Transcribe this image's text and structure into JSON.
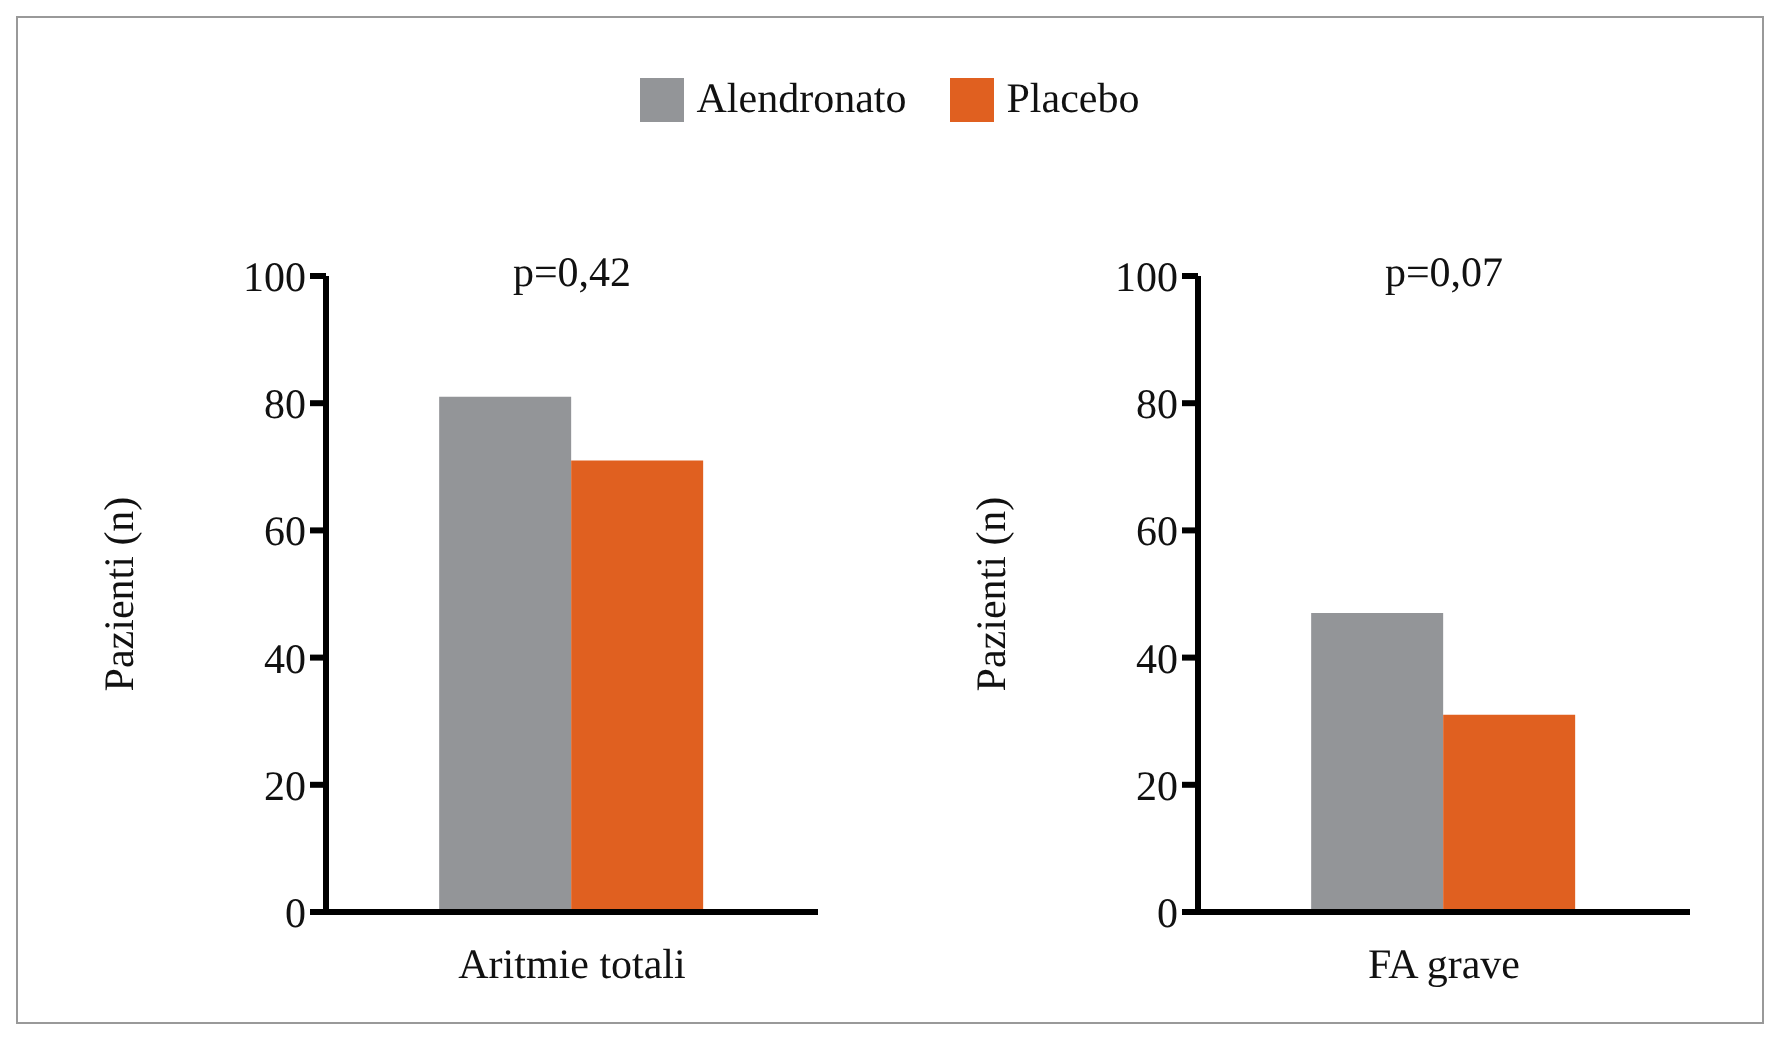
{
  "chart_data": [
    {
      "type": "bar",
      "categories": [
        "Aritmie totali"
      ],
      "ylabel": "Pazienti (n)",
      "ylim": [
        0,
        100
      ],
      "yticks": [
        0,
        20,
        40,
        60,
        80,
        100
      ],
      "annotations": [
        "p=0,42"
      ],
      "legend": "top",
      "series": [
        {
          "name": "Alendronato",
          "color": "#939598",
          "values": [
            81
          ]
        },
        {
          "name": "Placebo",
          "color": "#e06020",
          "values": [
            71
          ]
        }
      ]
    },
    {
      "type": "bar",
      "categories": [
        "FA grave"
      ],
      "ylabel": "Pazienti (n)",
      "ylim": [
        0,
        100
      ],
      "yticks": [
        0,
        20,
        40,
        60,
        80,
        100
      ],
      "annotations": [
        "p=0,07"
      ],
      "series": [
        {
          "color": "#939598",
          "values": [
            47
          ]
        },
        {
          "color": "#e06020",
          "values": [
            31
          ]
        }
      ]
    }
  ]
}
